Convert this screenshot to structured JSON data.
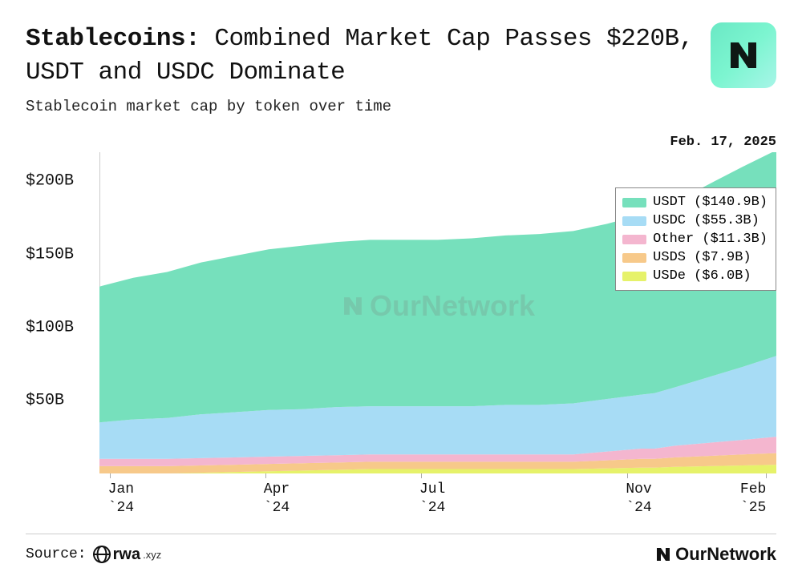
{
  "header": {
    "title_bold": "Stablecoins:",
    "title_rest": " Combined Market Cap Passes $220B, USDT and USDC Dominate",
    "subtitle": "Stablecoin market cap by token over time"
  },
  "chart": {
    "type": "area-stacked",
    "data_date_label": "Feb. 17, 2025",
    "ylim": [
      0,
      220
    ],
    "yticks": [
      50,
      100,
      150,
      200
    ],
    "ytick_labels": [
      "$50B",
      "$100B",
      "$150B",
      "$200B"
    ],
    "xtick_positions": [
      0.015,
      0.245,
      0.475,
      0.78,
      0.985
    ],
    "xtick_labels": [
      "Jan\n`24",
      "Apr\n`24",
      "Jul\n`24",
      "Nov\n`24",
      "Feb\n`25"
    ],
    "x_samples": [
      0,
      0.05,
      0.1,
      0.15,
      0.2,
      0.25,
      0.3,
      0.35,
      0.4,
      0.45,
      0.5,
      0.55,
      0.6,
      0.65,
      0.7,
      0.75,
      0.8,
      0.82,
      0.85,
      0.9,
      0.95,
      1.0
    ],
    "series": [
      {
        "name": "USDe",
        "color": "#e6f26a",
        "values": [
          0,
          0,
          0,
          0.5,
          1,
          1.5,
          2,
          2.5,
          3,
          3,
          3,
          3,
          3,
          3,
          3,
          3.5,
          4,
          4,
          4.5,
          5,
          5.5,
          6.0
        ]
      },
      {
        "name": "USDS",
        "color": "#f7c98a",
        "values": [
          5,
          5,
          5,
          5,
          5,
          5,
          5,
          5,
          5,
          5,
          5,
          5,
          5,
          5,
          5,
          5.5,
          6,
          6,
          6.5,
          7,
          7.5,
          7.9
        ]
      },
      {
        "name": "Other",
        "color": "#f4b6cf",
        "values": [
          5,
          5,
          5,
          5,
          5,
          5,
          5,
          5,
          5,
          5,
          5,
          5,
          5,
          5,
          5,
          6,
          7,
          7,
          8,
          9,
          10,
          11.3
        ]
      },
      {
        "name": "USDC",
        "color": "#a7dcf5",
        "values": [
          25,
          27,
          28,
          30,
          31,
          32,
          32,
          33,
          33,
          33,
          33,
          33,
          34,
          34,
          35,
          36,
          37,
          38,
          40,
          45,
          50,
          55.3
        ]
      },
      {
        "name": "USDT",
        "color": "#76e0bc",
        "values": [
          93,
          97,
          100,
          104,
          107,
          110,
          112,
          113,
          114,
          114,
          114,
          115,
          116,
          117,
          118,
          120,
          123,
          124,
          127,
          132,
          137,
          140.9
        ]
      }
    ],
    "legend": [
      {
        "label": "USDT ($140.9B)",
        "color": "#76e0bc"
      },
      {
        "label": "USDC ($55.3B)",
        "color": "#a7dcf5"
      },
      {
        "label": "Other ($11.3B)",
        "color": "#f4b6cf"
      },
      {
        "label": "USDS ($7.9B)",
        "color": "#f7c98a"
      },
      {
        "label": "USDe ($6.0B)",
        "color": "#e6f26a"
      }
    ],
    "background_color": "#ffffff",
    "axis_color": "#cccccc",
    "tick_font_size": 20,
    "watermark_text": "OurNetwork"
  },
  "footer": {
    "source_prefix": "Source:",
    "source_name": "rwa",
    "source_ext": ".xyz",
    "brand": "OurNetwork"
  }
}
